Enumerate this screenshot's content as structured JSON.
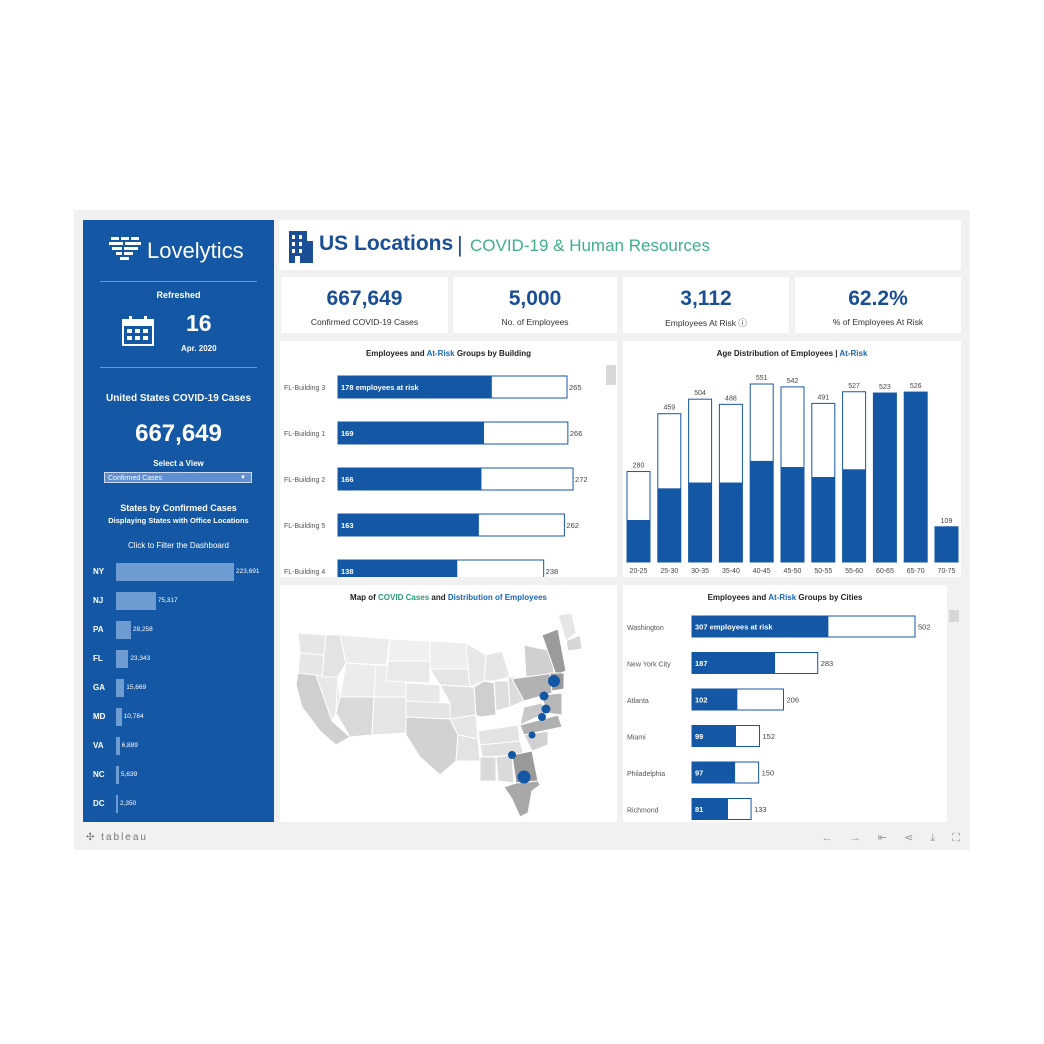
{
  "brand": {
    "name": "Lovelytics"
  },
  "sidebar": {
    "refreshed_label": "Refreshed",
    "day": "16",
    "month": "Apr. 2020",
    "cases_title": "United States COVID-19 Cases",
    "cases_value": "667,649",
    "select_label": "Select a View",
    "select_value": "Confirmed Cases",
    "states_title": "States by Confirmed Cases",
    "states_subtitle": "Displaying States with Office Locations",
    "filter_hint": "Click to Filter the Dashboard",
    "states": [
      {
        "code": "NY",
        "label": "223,691",
        "value": 223691
      },
      {
        "code": "NJ",
        "label": "75,317",
        "value": 75317
      },
      {
        "code": "PA",
        "label": "28,258",
        "value": 28258
      },
      {
        "code": "FL",
        "label": "23,343",
        "value": 23343
      },
      {
        "code": "GA",
        "label": "15,669",
        "value": 15669
      },
      {
        "code": "MD",
        "label": "10,784",
        "value": 10784
      },
      {
        "code": "VA",
        "label": "6,889",
        "value": 6889
      },
      {
        "code": "NC",
        "label": "5,639",
        "value": 5639
      },
      {
        "code": "DC",
        "label": "2,350",
        "value": 2350
      }
    ]
  },
  "header": {
    "title": "US Locations",
    "separator": "|",
    "subtitle": "COVID-19 & Human Resources"
  },
  "kpis": [
    {
      "value": "667,649",
      "label": "Confirmed COVID-19 Cases"
    },
    {
      "value": "5,000",
      "label": "No. of Employees"
    },
    {
      "value": "3,112",
      "label": "Employees At Risk ⓘ"
    },
    {
      "value": "62.2%",
      "label": "% of Employees At Risk"
    }
  ],
  "buildings_panel": {
    "title_a": "Employees and ",
    "title_b": "At-Risk",
    "title_c": " Groups by Building"
  },
  "age_panel": {
    "title_a": "Age Distribution of Employees | ",
    "title_b": "At-Risk"
  },
  "map_panel": {
    "title_a": "Map of ",
    "title_b": "COVID Cases",
    "title_c": " and ",
    "title_d": "Distribution of Employees"
  },
  "cities_panel": {
    "title_a": "Employees and ",
    "title_b": "At-Risk",
    "title_c": " Groups by Cities"
  },
  "footer": {
    "brand": "tableau"
  },
  "colors": {
    "navy": "#1457a4",
    "accent": "#3fae8c",
    "bar_light": "#6f9bd3"
  },
  "chart_data": [
    {
      "type": "bar",
      "orientation": "horizontal",
      "categories": [
        "FL-Building 3",
        "FL-Building 1",
        "FL-Building 2",
        "FL-Building 5",
        "FL-Building 4"
      ],
      "series": [
        {
          "name": "At-Risk",
          "values": [
            178,
            169,
            166,
            163,
            138
          ],
          "labels": [
            "178 employees at risk",
            "169",
            "166",
            "163",
            "138"
          ]
        },
        {
          "name": "Employees",
          "values": [
            265,
            266,
            272,
            262,
            238
          ]
        }
      ],
      "xlim": [
        0,
        400
      ]
    },
    {
      "type": "bar",
      "categories": [
        "20-25",
        "25-30",
        "30-35",
        "35-40",
        "40-45",
        "45-50",
        "50-55",
        "55-60",
        "60-65",
        "65-70",
        "70-75"
      ],
      "series": [
        {
          "name": "Employees",
          "values": [
            280,
            459,
            504,
            488,
            551,
            542,
            491,
            527,
            523,
            526,
            109
          ]
        },
        {
          "name": "At-Risk",
          "values": [
            130,
            228,
            246,
            246,
            313,
            294,
            263,
            287,
            523,
            526,
            109
          ]
        }
      ],
      "ylim": [
        0,
        560
      ]
    },
    {
      "type": "bar",
      "orientation": "horizontal",
      "categories": [
        "Washington",
        "New York City",
        "Atlanta",
        "Miami",
        "Philadelphia",
        "Richmond"
      ],
      "series": [
        {
          "name": "At-Risk",
          "values": [
            307,
            187,
            102,
            99,
            97,
            81
          ],
          "labels": [
            "307 employees at risk",
            "187",
            "102",
            "99",
            "97",
            "81"
          ]
        },
        {
          "name": "Employees",
          "values": [
            502,
            283,
            206,
            152,
            150,
            133
          ]
        }
      ],
      "xlim": [
        0,
        560
      ]
    }
  ]
}
